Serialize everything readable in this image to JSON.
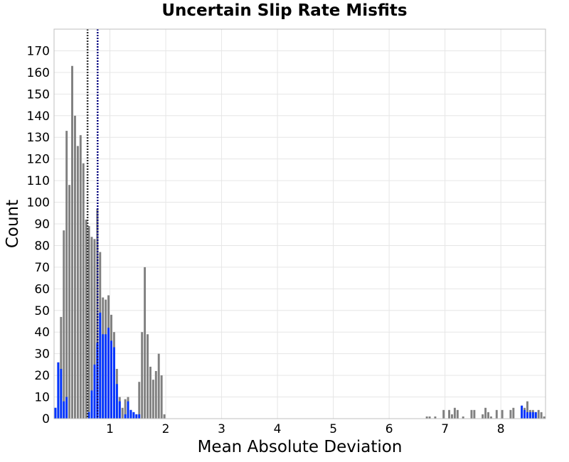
{
  "chart_data": {
    "type": "bar",
    "title": "Uncertain Slip Rate Misfits",
    "xlabel": "Mean Absolute Deviation",
    "ylabel": "Count",
    "xlim": [
      0,
      8.8
    ],
    "ylim": [
      0,
      180
    ],
    "x_ticks": [
      1,
      2,
      3,
      4,
      5,
      6,
      7,
      8
    ],
    "y_ticks": [
      0,
      10,
      20,
      30,
      40,
      50,
      60,
      70,
      80,
      90,
      100,
      110,
      120,
      130,
      140,
      150,
      160,
      170
    ],
    "grid": true,
    "bin_width": 0.05,
    "series": [
      {
        "color": "#808080",
        "values": [
          [
            0.025,
            5
          ],
          [
            0.075,
            26
          ],
          [
            0.125,
            47
          ],
          [
            0.175,
            87
          ],
          [
            0.225,
            133
          ],
          [
            0.275,
            108
          ],
          [
            0.325,
            163
          ],
          [
            0.375,
            140
          ],
          [
            0.425,
            126
          ],
          [
            0.475,
            131
          ],
          [
            0.525,
            118
          ],
          [
            0.575,
            92
          ],
          [
            0.625,
            89
          ],
          [
            0.675,
            84
          ],
          [
            0.725,
            83
          ],
          [
            0.775,
            97
          ],
          [
            0.825,
            77
          ],
          [
            0.875,
            56
          ],
          [
            0.925,
            55
          ],
          [
            0.975,
            57
          ],
          [
            1.025,
            48
          ],
          [
            1.075,
            40
          ],
          [
            1.125,
            23
          ],
          [
            1.175,
            10
          ],
          [
            1.225,
            5
          ],
          [
            1.275,
            9
          ],
          [
            1.325,
            10
          ],
          [
            1.375,
            4
          ],
          [
            1.425,
            3
          ],
          [
            1.475,
            2
          ],
          [
            1.525,
            17
          ],
          [
            1.575,
            40
          ],
          [
            1.625,
            70
          ],
          [
            1.675,
            39
          ],
          [
            1.725,
            24
          ],
          [
            1.775,
            18
          ],
          [
            1.825,
            22
          ],
          [
            1.875,
            30
          ],
          [
            1.925,
            20
          ],
          [
            1.975,
            2
          ],
          [
            6.675,
            1
          ],
          [
            6.725,
            1
          ],
          [
            6.825,
            1
          ],
          [
            6.975,
            4
          ],
          [
            7.075,
            4
          ],
          [
            7.125,
            2
          ],
          [
            7.175,
            5
          ],
          [
            7.225,
            4
          ],
          [
            7.325,
            1
          ],
          [
            7.475,
            4
          ],
          [
            7.525,
            4
          ],
          [
            7.675,
            2
          ],
          [
            7.725,
            5
          ],
          [
            7.775,
            3
          ],
          [
            7.825,
            1
          ],
          [
            7.925,
            4
          ],
          [
            8.025,
            4
          ],
          [
            8.175,
            4
          ],
          [
            8.225,
            5
          ],
          [
            8.375,
            6
          ],
          [
            8.425,
            5
          ],
          [
            8.475,
            8
          ],
          [
            8.525,
            4
          ],
          [
            8.575,
            4
          ],
          [
            8.625,
            3
          ],
          [
            8.675,
            4
          ],
          [
            8.725,
            3
          ],
          [
            8.775,
            1
          ]
        ]
      },
      {
        "color": "#0033ff",
        "values": [
          [
            0.025,
            5
          ],
          [
            0.075,
            26
          ],
          [
            0.125,
            23
          ],
          [
            0.175,
            8
          ],
          [
            0.225,
            10
          ],
          [
            0.625,
            3
          ],
          [
            0.675,
            13
          ],
          [
            0.725,
            25
          ],
          [
            0.775,
            35
          ],
          [
            0.825,
            49
          ],
          [
            0.875,
            39
          ],
          [
            0.925,
            39
          ],
          [
            0.975,
            42
          ],
          [
            1.025,
            36
          ],
          [
            1.075,
            33
          ],
          [
            1.125,
            16
          ],
          [
            1.175,
            8
          ],
          [
            1.275,
            2
          ],
          [
            1.325,
            8
          ],
          [
            1.375,
            4
          ],
          [
            1.425,
            3
          ],
          [
            1.475,
            2
          ],
          [
            1.525,
            2
          ],
          [
            8.375,
            6
          ],
          [
            8.425,
            4
          ],
          [
            8.475,
            3
          ],
          [
            8.525,
            3
          ],
          [
            8.575,
            3
          ],
          [
            8.625,
            3
          ]
        ]
      }
    ],
    "reference_lines": [
      {
        "x": 0.6,
        "color": "#333333",
        "style": "dotted"
      },
      {
        "x": 0.78,
        "color": "#000080",
        "style": "dotted"
      }
    ]
  }
}
